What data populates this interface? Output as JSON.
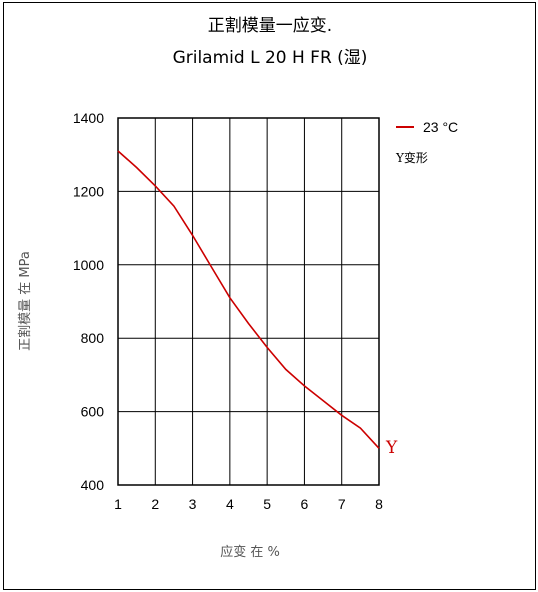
{
  "chart_data": {
    "type": "line",
    "title": "正割模量一应变.",
    "subtitle": "Grilamid L 20 H FR (湿)",
    "xlabel": "应变 在 %",
    "ylabel": "正割模量 在 MPa",
    "xlim": [
      1,
      8
    ],
    "ylim": [
      400,
      1400
    ],
    "x_ticks": [
      "1",
      "2",
      "3",
      "4",
      "5",
      "6",
      "7",
      "8"
    ],
    "y_ticks": [
      "400",
      "600",
      "800",
      "1000",
      "1200",
      "1400"
    ],
    "grid": true,
    "legend_position": "right",
    "legend_note": "Y变形",
    "end_marker": "Y",
    "colors": {
      "series": "#cc0000",
      "grid": "#000000"
    },
    "series": [
      {
        "name": "23 °C",
        "x": [
          1,
          1.5,
          2,
          2.5,
          3,
          3.5,
          4,
          4.5,
          5,
          5.5,
          6,
          6.5,
          7,
          7.5,
          8
        ],
        "y": [
          1310,
          1265,
          1215,
          1160,
          1080,
          995,
          910,
          840,
          775,
          715,
          670,
          630,
          590,
          555,
          500
        ]
      }
    ]
  }
}
